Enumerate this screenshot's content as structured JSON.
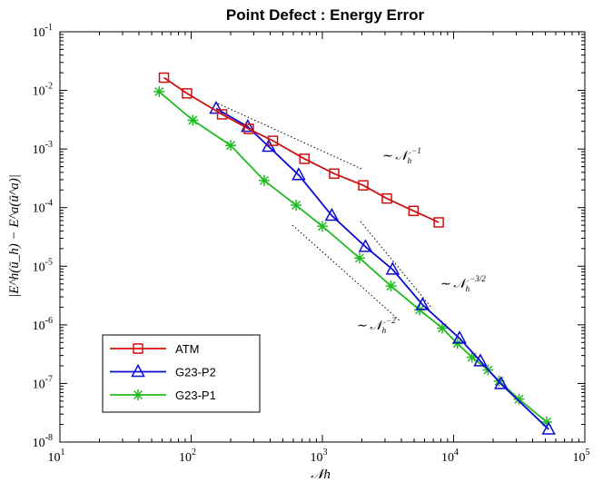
{
  "chart_data": {
    "type": "line",
    "title": "Point Defect : Energy Error",
    "xlabel": "𝒩h",
    "ylabel": "|E^h(ū_h) − E^a(ū^a)|",
    "xscale": "log",
    "yscale": "log",
    "xlim": [
      10,
      100000
    ],
    "ylim": [
      1e-08,
      0.1
    ],
    "x_ticks": [
      {
        "base": "10",
        "exp": "1"
      },
      {
        "base": "10",
        "exp": "2"
      },
      {
        "base": "10",
        "exp": "3"
      },
      {
        "base": "10",
        "exp": "4"
      },
      {
        "base": "10",
        "exp": "5"
      }
    ],
    "y_ticks": [
      {
        "base": "10",
        "exp": "-8"
      },
      {
        "base": "10",
        "exp": "-7"
      },
      {
        "base": "10",
        "exp": "-6"
      },
      {
        "base": "10",
        "exp": "-5"
      },
      {
        "base": "10",
        "exp": "-4"
      },
      {
        "base": "10",
        "exp": "-3"
      },
      {
        "base": "10",
        "exp": "-2"
      },
      {
        "base": "10",
        "exp": "-1"
      }
    ],
    "grid": false,
    "legend_position": "bottom-left",
    "series": [
      {
        "name": "ATM",
        "color": "#cc1111",
        "marker": "square",
        "x": [
          62,
          93,
          172,
          275,
          420,
          730,
          1230,
          2050,
          3100,
          4950,
          7700
        ],
        "y": [
          0.0165,
          0.0089,
          0.0039,
          0.0022,
          0.00138,
          0.00068,
          0.00038,
          0.00024,
          0.000143,
          8.8e-05,
          5.6e-05
        ]
      },
      {
        "name": "G23-P2",
        "color": "#0b0bd0",
        "marker": "triangle",
        "x": [
          155,
          270,
          390,
          660,
          1180,
          2130,
          3430,
          5800,
          11100,
          16000,
          23000,
          53000
        ],
        "y": [
          0.0049,
          0.0024,
          0.0011,
          0.00036,
          7.3e-05,
          2.15e-05,
          8.8e-06,
          2.2e-06,
          5.9e-07,
          2.4e-07,
          9.8e-08,
          1.65e-08
        ]
      },
      {
        "name": "G23-P1",
        "color": "#22bb22",
        "marker": "asterisk",
        "x": [
          57,
          103,
          200,
          360,
          630,
          1000,
          1920,
          3330,
          5500,
          8200,
          10700,
          13800,
          18300,
          22200,
          31500,
          51200
        ],
        "y": [
          0.0095,
          0.0031,
          0.00115,
          0.00029,
          0.00011,
          4.8e-05,
          1.38e-05,
          4.6e-06,
          1.8e-06,
          8.8e-07,
          4.8e-07,
          2.8e-07,
          1.7e-07,
          1.1e-07,
          5.4e-08,
          2.2e-08
        ]
      }
    ],
    "annotations": [
      {
        "prefix": "∼ 𝒩",
        "sub": "h",
        "exp": "−1"
      },
      {
        "prefix": "∼ 𝒩",
        "sub": "h",
        "exp": "−3/2"
      },
      {
        "prefix": "∼ 𝒩",
        "sub": "h",
        "exp": "−2"
      }
    ]
  }
}
